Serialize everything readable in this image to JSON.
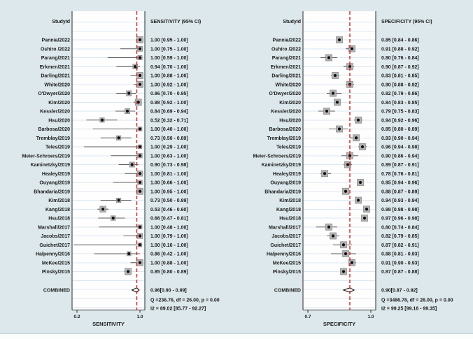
{
  "figure": {
    "background": "#dde8ec",
    "panel_background": "#fefefe",
    "grid_color": "#dce7f0",
    "border_color": "#2b2b2b",
    "ci_line_color": "#5c5c5c",
    "weight_box_fill": "#b3b3b3",
    "weight_box_stroke": "#8c8c8c",
    "point_color": "#0f0f0f",
    "ref_line_color": "#d32525",
    "diamond_fill": "#ffffff",
    "diamond_stroke": "#111111"
  },
  "chart_data": [
    {
      "type": "forest",
      "study_header": "StudyId",
      "title": "SENSITIVITY (95% CI)",
      "xlabel": "SENSITIVITY",
      "xlim": [
        0.2,
        1.0
      ],
      "x_ticks": [
        {
          "v": 0.2,
          "label": "0.2"
        },
        {
          "v": 1.0,
          "label": "1.0"
        }
      ],
      "ref_line": 0.96,
      "studies": [
        {
          "label": "Pannia/2022",
          "est": 1.0,
          "lo": 0.95,
          "hi": 1.0,
          "ci_text": "1.00 [0.95 - 1.00]"
        },
        {
          "label": "Oshiro /2022",
          "est": 1.0,
          "lo": 0.75,
          "hi": 1.0,
          "ci_text": "1.00 [0.75 - 1.00]"
        },
        {
          "label": "Parang/2021",
          "est": 1.0,
          "lo": 0.59,
          "hi": 1.0,
          "ci_text": "1.00 [0.59 - 1.00]"
        },
        {
          "label": "Erkmen/2021",
          "est": 0.94,
          "lo": 0.7,
          "hi": 1.0,
          "ci_text": "0.94 [0.70 - 1.00]"
        },
        {
          "label": "Darling/2021",
          "est": 1.0,
          "lo": 0.88,
          "hi": 1.0,
          "ci_text": "1.00 [0.88 - 1.00]"
        },
        {
          "label": "White/2020",
          "est": 1.0,
          "lo": 0.92,
          "hi": 1.0,
          "ci_text": "1.00 [0.92 - 1.00]"
        },
        {
          "label": "O'Dwyer/2020",
          "est": 0.86,
          "lo": 0.7,
          "hi": 0.95,
          "ci_text": "0.86 [0.70 - 0.95]"
        },
        {
          "label": "Kim/2020",
          "est": 0.98,
          "lo": 0.92,
          "hi": 1.0,
          "ci_text": "0.98 [0.92 - 1.00]"
        },
        {
          "label": "Kessler/2020",
          "est": 0.84,
          "lo": 0.69,
          "hi": 0.94,
          "ci_text": "0.84 [0.69 - 0.94]"
        },
        {
          "label": "Hsu/2020",
          "est": 0.52,
          "lo": 0.32,
          "hi": 0.71,
          "ci_text": "0.52 [0.32 - 0.71]"
        },
        {
          "label": "Barbosa/2020",
          "est": 1.0,
          "lo": 0.4,
          "hi": 1.0,
          "ci_text": "1.00 [0.40 - 1.00]"
        },
        {
          "label": "Tremblay/2019",
          "est": 0.73,
          "lo": 0.5,
          "hi": 0.89,
          "ci_text": "0.73 [0.50 - 0.89]"
        },
        {
          "label": "Teles/2019",
          "est": 1.0,
          "lo": 0.29,
          "hi": 1.0,
          "ci_text": "1.00 [0.29 - 1.00]"
        },
        {
          "label": "Meier-Schroers/2019",
          "est": 1.0,
          "lo": 0.63,
          "hi": 1.0,
          "ci_text": "1.00 [0.63 - 1.00]"
        },
        {
          "label": "Kaminetzky/2019",
          "est": 0.9,
          "lo": 0.73,
          "hi": 0.98,
          "ci_text": "0.90 [0.73 - 0.98]"
        },
        {
          "label": "Healey/2019",
          "est": 1.0,
          "lo": 0.81,
          "hi": 1.0,
          "ci_text": "1.00 [0.81 - 1.00]"
        },
        {
          "label": "Ouyang/2019",
          "est": 1.0,
          "lo": 0.66,
          "hi": 1.0,
          "ci_text": "1.00 [0.66 - 1.00]"
        },
        {
          "label": "Bhandaria/2019",
          "est": 1.0,
          "lo": 0.95,
          "hi": 1.0,
          "ci_text": "1.00 [0.95 - 1.00]"
        },
        {
          "label": "Kim/2018",
          "est": 0.73,
          "lo": 0.5,
          "hi": 0.89,
          "ci_text": "0.73 [0.50 - 0.89]"
        },
        {
          "label": "Kang/2018",
          "est": 0.53,
          "lo": 0.46,
          "hi": 0.6,
          "ci_text": "0.53 [0.46 - 0.60]"
        },
        {
          "label": "Hsu/2018",
          "est": 0.66,
          "lo": 0.47,
          "hi": 0.81,
          "ci_text": "0.66 [0.47 - 0.81]"
        },
        {
          "label": "Marshall/2017",
          "est": 1.0,
          "lo": 0.48,
          "hi": 1.0,
          "ci_text": "1.00 [0.48 - 1.00]"
        },
        {
          "label": "Jacobs/2017",
          "est": 1.0,
          "lo": 0.79,
          "hi": 1.0,
          "ci_text": "1.00 [0.79 - 1.00]"
        },
        {
          "label": "Guichet/2017",
          "est": 1.0,
          "lo": 0.16,
          "hi": 1.0,
          "ci_text": "1.00 [0.16 - 1.00]"
        },
        {
          "label": "Halpenny/2016",
          "est": 0.86,
          "lo": 0.42,
          "hi": 1.0,
          "ci_text": "0.86 [0.42 - 1.00]"
        },
        {
          "label": "McKee/2015",
          "est": 1.0,
          "lo": 0.88,
          "hi": 1.0,
          "ci_text": "1.00 [0.88 - 1.00]"
        },
        {
          "label": "Pinsky/2015",
          "est": 0.85,
          "lo": 0.8,
          "hi": 0.89,
          "ci_text": "0.85 [0.80 - 0.89]"
        }
      ],
      "combined": {
        "label": "COMBINED",
        "est": 0.96,
        "lo": 0.9,
        "hi": 0.99,
        "text": "0.96[0.90 - 0.99]"
      },
      "heterogeneity": [
        "Q =236.76, df = 26.00, p = 0.00",
        "I2 = 89.02 [85.77 - 92.27]"
      ]
    },
    {
      "type": "forest",
      "study_header": "StudyId",
      "title": "SPECIFICITY (95% CI)",
      "xlabel": "SPECIFICITY",
      "xlim": [
        0.7,
        1.0
      ],
      "x_ticks": [
        {
          "v": 0.7,
          "label": "0.7"
        },
        {
          "v": 1.0,
          "label": "1.0"
        }
      ],
      "ref_line": 0.9,
      "studies": [
        {
          "label": "Pannia/2022",
          "est": 0.85,
          "lo": 0.84,
          "hi": 0.86,
          "ci_text": "0.85 [0.84 - 0.86]"
        },
        {
          "label": "Oshiro /2022",
          "est": 0.91,
          "lo": 0.88,
          "hi": 0.92,
          "ci_text": "0.91 [0.88 - 0.92]"
        },
        {
          "label": "Parang/2021",
          "est": 0.8,
          "lo": 0.76,
          "hi": 0.84,
          "ci_text": "0.80 [0.76 - 0.84]"
        },
        {
          "label": "Erkmen/2021",
          "est": 0.9,
          "lo": 0.87,
          "hi": 0.92,
          "ci_text": "0.90 [0.87 - 0.92]"
        },
        {
          "label": "Darling/2021",
          "est": 0.83,
          "lo": 0.81,
          "hi": 0.85,
          "ci_text": "0.83 [0.81 - 0.85]"
        },
        {
          "label": "White/2020",
          "est": 0.9,
          "lo": 0.88,
          "hi": 0.92,
          "ci_text": "0.90 [0.88 - 0.92]"
        },
        {
          "label": "O'Dwyer/2020",
          "est": 0.82,
          "lo": 0.79,
          "hi": 0.86,
          "ci_text": "0.82 [0.79 - 0.86]"
        },
        {
          "label": "Kim/2020",
          "est": 0.84,
          "lo": 0.83,
          "hi": 0.85,
          "ci_text": "0.84 [0.83 - 0.85]"
        },
        {
          "label": "Kessler/2020",
          "est": 0.79,
          "lo": 0.75,
          "hi": 0.83,
          "ci_text": "0.79 [0.75 - 0.83]"
        },
        {
          "label": "Hsu/2020",
          "est": 0.94,
          "lo": 0.92,
          "hi": 0.96,
          "ci_text": "0.94 [0.92 - 0.96]"
        },
        {
          "label": "Barbosa/2020",
          "est": 0.85,
          "lo": 0.8,
          "hi": 0.89,
          "ci_text": "0.85 [0.80 - 0.89]"
        },
        {
          "label": "Tremblay/2019",
          "est": 0.93,
          "lo": 0.9,
          "hi": 0.94,
          "ci_text": "0.93 [0.90 - 0.94]"
        },
        {
          "label": "Teles/2019",
          "est": 0.96,
          "lo": 0.94,
          "hi": 0.98,
          "ci_text": "0.96 [0.94 - 0.98]"
        },
        {
          "label": "Meier-Schroers/2019",
          "est": 0.9,
          "lo": 0.86,
          "hi": 0.94,
          "ci_text": "0.90 [0.86 - 0.94]"
        },
        {
          "label": "Kaminetzky/2019",
          "est": 0.89,
          "lo": 0.87,
          "hi": 0.91,
          "ci_text": "0.89 [0.87 - 0.91]"
        },
        {
          "label": "Healey/2019",
          "est": 0.78,
          "lo": 0.76,
          "hi": 0.81,
          "ci_text": "0.78 [0.76 - 0.81]"
        },
        {
          "label": "Ouyang/2019",
          "est": 0.95,
          "lo": 0.94,
          "hi": 0.96,
          "ci_text": "0.95 [0.94 - 0.96]"
        },
        {
          "label": "Bhandaria/2019",
          "est": 0.88,
          "lo": 0.87,
          "hi": 0.89,
          "ci_text": "0.88 [0.87 - 0.89]"
        },
        {
          "label": "Kim/2018",
          "est": 0.94,
          "lo": 0.93,
          "hi": 0.94,
          "ci_text": "0.94 [0.93 - 0.94]"
        },
        {
          "label": "Kang/2018",
          "est": 0.98,
          "lo": 0.98,
          "hi": 0.98,
          "ci_text": "0.98 [0.98 - 0.98]"
        },
        {
          "label": "Hsu/2018",
          "est": 0.97,
          "lo": 0.96,
          "hi": 0.98,
          "ci_text": "0.97 [0.96 - 0.98]"
        },
        {
          "label": "Marshall/2017",
          "est": 0.8,
          "lo": 0.74,
          "hi": 0.84,
          "ci_text": "0.80 [0.74 - 0.84]"
        },
        {
          "label": "Jacobs/2017",
          "est": 0.82,
          "lo": 0.79,
          "hi": 0.85,
          "ci_text": "0.82 [0.79 - 0.85]"
        },
        {
          "label": "Guichet/2017",
          "est": 0.87,
          "lo": 0.82,
          "hi": 0.91,
          "ci_text": "0.87 [0.82 - 0.91]"
        },
        {
          "label": "Halpenny/2016",
          "est": 0.88,
          "lo": 0.81,
          "hi": 0.93,
          "ci_text": "0.88 [0.81 - 0.93]"
        },
        {
          "label": "McKee/2015",
          "est": 0.91,
          "lo": 0.9,
          "hi": 0.93,
          "ci_text": "0.91 [0.90 - 0.93]"
        },
        {
          "label": "Pinsky/2015",
          "est": 0.87,
          "lo": 0.87,
          "hi": 0.88,
          "ci_text": "0.87 [0.87 - 0.88]"
        }
      ],
      "combined": {
        "label": "COMBINED",
        "est": 0.9,
        "lo": 0.87,
        "hi": 0.92,
        "text": "0.90[0.87 - 0.92]"
      },
      "heterogeneity": [
        "Q =3486.78, df = 26.00, p = 0.00",
        "I2 = 99.25 [99.16 - 99.35]"
      ]
    }
  ]
}
